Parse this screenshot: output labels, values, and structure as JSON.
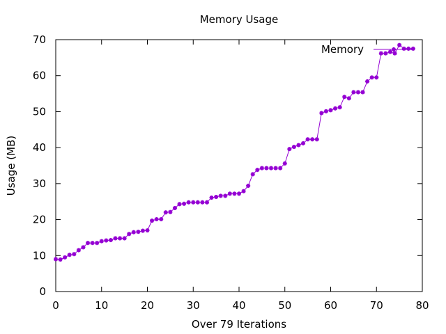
{
  "chart_data": {
    "type": "line",
    "title": "Memory Usage",
    "xlabel": "Over 79 Iterations",
    "ylabel": "Usage (MB)",
    "xlim": [
      0,
      80
    ],
    "ylim": [
      0,
      70
    ],
    "x_ticks": [
      "0",
      "10",
      "20",
      "30",
      "40",
      "50",
      "60",
      "70",
      "80"
    ],
    "y_ticks": [
      "0",
      "10",
      "20",
      "30",
      "40",
      "50",
      "60",
      "70"
    ],
    "grid": false,
    "legend_position": "top-right",
    "color": "#9400d3",
    "series": [
      {
        "name": "Memory",
        "x": [
          0,
          1,
          2,
          3,
          4,
          5,
          6,
          7,
          8,
          9,
          10,
          11,
          12,
          13,
          14,
          15,
          16,
          17,
          18,
          19,
          20,
          21,
          22,
          23,
          24,
          25,
          26,
          27,
          28,
          29,
          30,
          31,
          32,
          33,
          34,
          35,
          36,
          37,
          38,
          39,
          40,
          41,
          42,
          43,
          44,
          45,
          46,
          47,
          48,
          49,
          50,
          51,
          52,
          53,
          54,
          55,
          56,
          57,
          58,
          59,
          60,
          61,
          62,
          63,
          64,
          65,
          66,
          67,
          68,
          69,
          70,
          71,
          72,
          73,
          74,
          75,
          76,
          77,
          78
        ],
        "y": [
          9.0,
          8.9,
          9.5,
          10.2,
          10.4,
          11.5,
          12.3,
          13.5,
          13.5,
          13.5,
          14.0,
          14.2,
          14.3,
          14.8,
          14.8,
          14.8,
          16.0,
          16.5,
          16.6,
          16.9,
          17.0,
          19.7,
          20.1,
          20.1,
          22.0,
          22.1,
          23.2,
          24.3,
          24.4,
          24.8,
          24.8,
          24.8,
          24.8,
          24.8,
          26.1,
          26.3,
          26.6,
          26.6,
          27.2,
          27.2,
          27.2,
          27.9,
          29.4,
          32.6,
          33.8,
          34.3,
          34.3,
          34.3,
          34.3,
          34.3,
          35.6,
          39.6,
          40.2,
          40.7,
          41.2,
          42.3,
          42.3,
          42.3,
          49.6,
          50.1,
          50.4,
          50.9,
          51.2,
          54.1,
          53.7,
          55.4,
          55.4,
          55.4,
          58.4,
          59.5,
          59.5,
          66.2,
          66.2,
          66.6,
          66.2,
          68.5,
          67.5,
          67.5,
          67.5
        ]
      }
    ]
  }
}
